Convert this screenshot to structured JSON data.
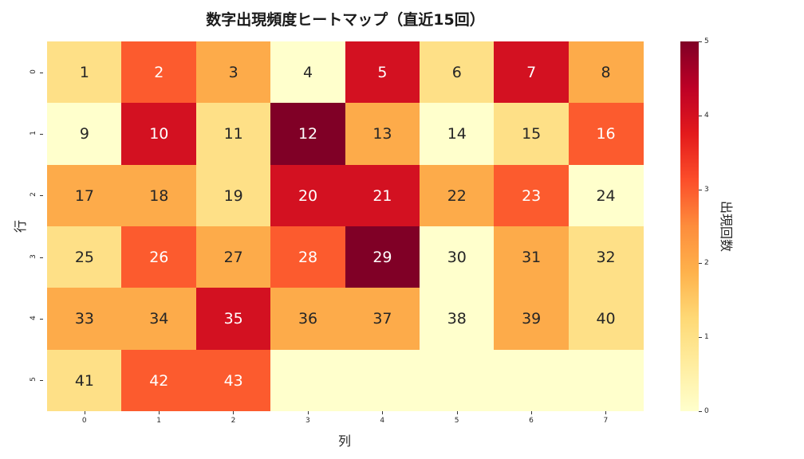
{
  "chart_data": {
    "type": "heatmap",
    "title": "数字出現頻度ヒートマップ（直近15回）",
    "xlabel": "列",
    "ylabel": "行",
    "x_ticks": [
      "0",
      "1",
      "2",
      "3",
      "4",
      "5",
      "6",
      "7"
    ],
    "y_ticks": [
      "0",
      "1",
      "2",
      "3",
      "4",
      "5"
    ],
    "colormap": "YlOrRd",
    "vmin": 0,
    "vmax": 5,
    "colorbar": {
      "label": "出現回数",
      "ticks": [
        "0",
        "1",
        "2",
        "3",
        "4",
        "5"
      ]
    },
    "annotations": [
      [
        "1",
        "2",
        "3",
        "4",
        "5",
        "6",
        "7",
        "8"
      ],
      [
        "9",
        "10",
        "11",
        "12",
        "13",
        "14",
        "15",
        "16"
      ],
      [
        "17",
        "18",
        "19",
        "20",
        "21",
        "22",
        "23",
        "24"
      ],
      [
        "25",
        "26",
        "27",
        "28",
        "29",
        "30",
        "31",
        "32"
      ],
      [
        "33",
        "34",
        "35",
        "36",
        "37",
        "38",
        "39",
        "40"
      ],
      [
        "41",
        "42",
        "43",
        "",
        "",
        "",
        "",
        ""
      ]
    ],
    "values": [
      [
        1,
        3,
        2,
        0,
        4,
        1,
        4,
        2
      ],
      [
        0,
        4,
        1,
        5,
        2,
        0,
        1,
        3
      ],
      [
        2,
        2,
        1,
        4,
        4,
        2,
        3,
        0
      ],
      [
        1,
        3,
        2,
        3,
        5,
        0,
        2,
        1
      ],
      [
        2,
        2,
        4,
        2,
        2,
        0,
        2,
        1
      ],
      [
        1,
        3,
        3,
        0,
        0,
        0,
        0,
        0
      ]
    ],
    "grid": false,
    "legend_position": "right"
  },
  "palette": [
    "#ffffcc",
    "#fee087",
    "#fdab4a",
    "#fc5b2e",
    "#d31121",
    "#800026"
  ]
}
